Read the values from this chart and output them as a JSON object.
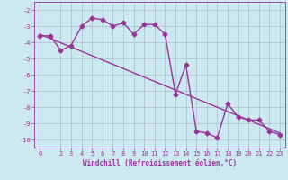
{
  "title": "",
  "xlabel": "Windchill (Refroidissement éolien,°C)",
  "ylabel": "",
  "bg_color": "#cce8f0",
  "line_color": "#993399",
  "grid_color": "#aabbcc",
  "x_data": [
    0,
    1,
    2,
    3,
    4,
    5,
    6,
    7,
    8,
    9,
    10,
    11,
    12,
    13,
    14,
    15,
    16,
    17,
    18,
    19,
    20,
    21,
    22,
    23
  ],
  "y_data": [
    -3.6,
    -3.6,
    -4.5,
    -4.2,
    -3.0,
    -2.5,
    -2.6,
    -3.0,
    -2.8,
    -3.5,
    -2.9,
    -2.9,
    -3.5,
    -7.2,
    -5.4,
    -9.5,
    -9.6,
    -9.9,
    -7.8,
    -8.6,
    -8.8,
    -8.8,
    -9.5,
    -9.7
  ],
  "trend_x": [
    0,
    23
  ],
  "trend_y": [
    -3.5,
    -9.6
  ],
  "xlim": [
    -0.5,
    23.5
  ],
  "ylim": [
    -10.5,
    -1.5
  ],
  "yticks": [
    -10,
    -9,
    -8,
    -7,
    -6,
    -5,
    -4,
    -3,
    -2
  ],
  "ytick_labels": [
    "-10",
    "-9",
    "-8",
    "-7",
    "-6",
    "-5",
    "-4",
    "-3",
    "-2"
  ],
  "xticks": [
    0,
    2,
    3,
    4,
    5,
    6,
    7,
    8,
    9,
    10,
    11,
    12,
    13,
    14,
    15,
    16,
    17,
    18,
    19,
    20,
    21,
    22,
    23
  ],
  "xtick_labels": [
    "0",
    "2",
    "3",
    "4",
    "5",
    "6",
    "7",
    "8",
    "9",
    "10",
    "11",
    "12",
    "13",
    "14",
    "15",
    "16",
    "17",
    "18",
    "19",
    "20",
    "21",
    "22",
    "23"
  ],
  "marker": "D",
  "marker_size": 2.5,
  "line_width": 1.0,
  "label_fontsize": 5.5,
  "tick_fontsize": 5.0
}
